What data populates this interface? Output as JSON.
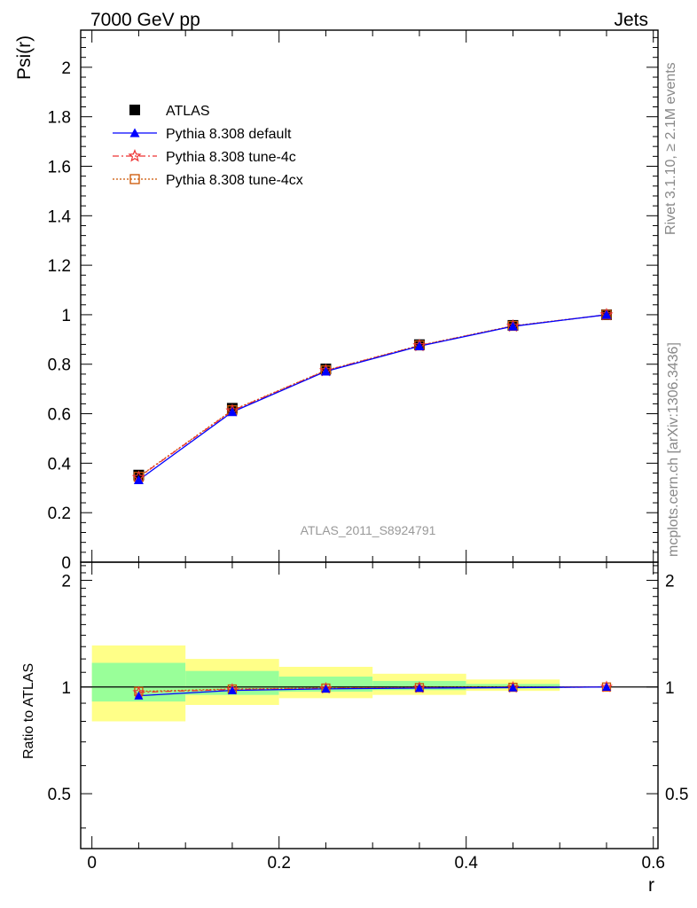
{
  "header": {
    "left": "7000 GeV pp",
    "right": "Jets"
  },
  "side_labels": {
    "rivet": "Rivet 3.1.10, ≥ 2.1M events",
    "source": "mcplots.cern.ch [arXiv:1306.3436]"
  },
  "chart_data": [
    {
      "type": "line",
      "panel": "main",
      "ylabel": "Psi(r)",
      "xlim": [
        -0.012,
        0.605
      ],
      "ylim": [
        0,
        2.15
      ],
      "yticks": [
        0,
        0.2,
        0.4,
        0.6,
        0.8,
        1,
        1.2,
        1.4,
        1.6,
        1.8,
        2
      ],
      "ytick_labels": [
        "0",
        "0.2",
        "0.4",
        "0.6",
        "0.8",
        "1",
        "1.2",
        "1.4",
        "1.6",
        "1.8",
        "2"
      ],
      "watermark": "ATLAS_2011_S8924791",
      "legend_position": "top-left",
      "x": [
        0.05,
        0.15,
        0.25,
        0.35,
        0.45,
        0.55
      ],
      "series": [
        {
          "name": "ATLAS",
          "color": "#000000",
          "marker": "square",
          "values": [
            0.352,
            0.622,
            0.781,
            0.879,
            0.957,
            1.0
          ]
        },
        {
          "name": "Pythia 8.308 default",
          "color": "#0000ff",
          "marker": "triangle",
          "line": "solid",
          "values": [
            0.332,
            0.607,
            0.771,
            0.873,
            0.953,
            1.0
          ]
        },
        {
          "name": "Pythia 8.308 tune-4c",
          "color": "#ee3333",
          "marker": "star",
          "line": "dashdot",
          "values": [
            0.343,
            0.612,
            0.774,
            0.875,
            0.954,
            1.0
          ]
        },
        {
          "name": "Pythia 8.308 tune-4cx",
          "color": "#cc5500",
          "marker": "open-square",
          "line": "dotted",
          "values": [
            0.345,
            0.614,
            0.775,
            0.876,
            0.955,
            1.0
          ]
        }
      ]
    },
    {
      "type": "line",
      "panel": "ratio",
      "ylabel": "Ratio to ATLAS",
      "xlabel": "r",
      "xlim": [
        -0.012,
        0.605
      ],
      "ylim": [
        0.35,
        2.25
      ],
      "xticks": [
        0,
        0.2,
        0.4,
        0.6
      ],
      "xtick_labels": [
        "0",
        "0.2",
        "0.4",
        "0.6"
      ],
      "yticks": [
        0.5,
        1,
        2
      ],
      "ytick_labels": [
        "0.5",
        "1",
        "2"
      ],
      "bands": {
        "bin_edges": [
          0.0,
          0.1,
          0.2,
          0.3,
          0.4,
          0.5
        ],
        "stat": {
          "color": "#99ff99",
          "low": [
            0.91,
            0.95,
            0.97,
            0.98,
            0.99
          ],
          "high": [
            1.17,
            1.11,
            1.07,
            1.04,
            1.02
          ]
        },
        "total": {
          "color": "#ffff88",
          "low": [
            0.8,
            0.89,
            0.93,
            0.95,
            0.975
          ],
          "high": [
            1.31,
            1.2,
            1.14,
            1.09,
            1.05
          ]
        }
      },
      "x": [
        0.05,
        0.15,
        0.25,
        0.35,
        0.45,
        0.55
      ],
      "series": [
        {
          "name": "Pythia 8.308 default",
          "color": "#0000ff",
          "marker": "triangle",
          "line": "solid",
          "values": [
            0.945,
            0.978,
            0.988,
            0.993,
            0.996,
            1.0
          ]
        },
        {
          "name": "Pythia 8.308 tune-4c",
          "color": "#ee3333",
          "marker": "star",
          "line": "dashdot",
          "values": [
            0.966,
            0.984,
            0.991,
            0.995,
            0.997,
            1.0
          ]
        },
        {
          "name": "Pythia 8.308 tune-4cx",
          "color": "#cc5500",
          "marker": "open-square",
          "line": "dotted",
          "values": [
            0.972,
            0.987,
            0.993,
            0.996,
            0.998,
            1.0
          ]
        }
      ]
    }
  ]
}
